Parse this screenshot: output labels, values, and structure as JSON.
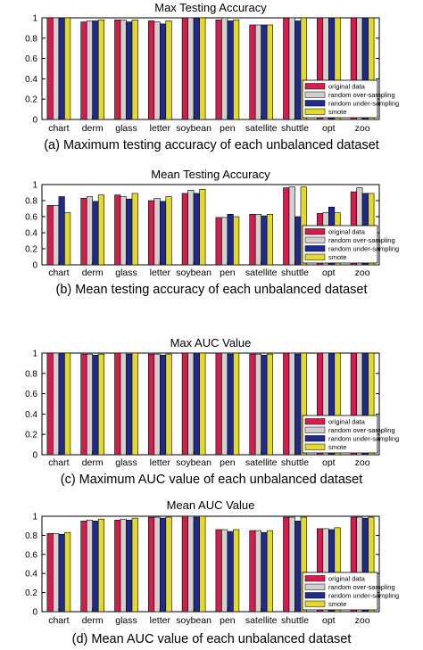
{
  "colors": {
    "original data": "#d21e4b",
    "random over-sampling": "#d0d0d0",
    "random under-sampling": "#1f2a8c",
    "smote": "#e3d92a"
  },
  "chart_data": [
    {
      "type": "bar",
      "title": "Max Testing Accuracy",
      "caption": "(a) Maximum testing accuracy of each unbalanced dataset",
      "categories": [
        "chart",
        "derm",
        "glass",
        "letter",
        "soybean",
        "pen",
        "satellite",
        "shuttle",
        "opt",
        "zoo"
      ],
      "ylim": [
        0,
        1
      ],
      "yticks": [
        "0",
        "0.2",
        "0.4",
        "0.6",
        "0.8",
        "1"
      ],
      "legend_position": "bottom-right",
      "series": [
        {
          "name": "original data",
          "values": [
            1.0,
            0.96,
            0.98,
            0.97,
            1.0,
            0.98,
            0.93,
            1.0,
            1.0,
            1.0
          ]
        },
        {
          "name": "random over-sampling",
          "values": [
            1.0,
            0.97,
            0.98,
            0.96,
            1.0,
            1.0,
            0.93,
            1.0,
            1.0,
            1.0
          ]
        },
        {
          "name": "random under-sampling",
          "values": [
            1.0,
            0.97,
            0.96,
            0.94,
            1.0,
            0.97,
            0.93,
            0.97,
            1.0,
            1.0
          ]
        },
        {
          "name": "smote",
          "values": [
            1.0,
            0.98,
            0.98,
            0.97,
            1.0,
            0.98,
            0.93,
            1.0,
            1.0,
            1.0
          ]
        }
      ]
    },
    {
      "type": "bar",
      "title": "Mean Testing Accuracy",
      "caption": "(b) Mean testing accuracy of each unbalanced dataset",
      "categories": [
        "chart",
        "derm",
        "glass",
        "letter",
        "soybean",
        "pen",
        "satellite",
        "shuttle",
        "opt",
        "zoo"
      ],
      "ylim": [
        0,
        1
      ],
      "yticks": [
        "0",
        "0.2",
        "0.4",
        "0.6",
        "0.8",
        "1"
      ],
      "legend_position": "bottom-right",
      "series": [
        {
          "name": "original data",
          "values": [
            0.74,
            0.83,
            0.87,
            0.8,
            0.89,
            0.59,
            0.63,
            0.96,
            0.64,
            0.91
          ]
        },
        {
          "name": "random over-sampling",
          "values": [
            0.74,
            0.85,
            0.85,
            0.83,
            0.93,
            0.59,
            0.63,
            0.97,
            0.65,
            0.96
          ]
        },
        {
          "name": "random under-sampling",
          "values": [
            0.85,
            0.79,
            0.82,
            0.79,
            0.89,
            0.63,
            0.61,
            0.6,
            0.72,
            0.89
          ]
        },
        {
          "name": "smote",
          "values": [
            0.65,
            0.87,
            0.89,
            0.85,
            0.94,
            0.6,
            0.63,
            0.97,
            0.65,
            0.89
          ]
        }
      ]
    },
    {
      "type": "bar",
      "title": "Max AUC Value",
      "caption": "(c) Maximum AUC value of each unbalanced dataset",
      "categories": [
        "chart",
        "derm",
        "glass",
        "letter",
        "soybean",
        "pen",
        "satellite",
        "shuttle",
        "opt",
        "zoo"
      ],
      "ylim": [
        0,
        1
      ],
      "yticks": [
        "0",
        "0.2",
        "0.4",
        "0.6",
        "0.8",
        "1"
      ],
      "legend_position": "bottom-right",
      "series": [
        {
          "name": "original data",
          "values": [
            1.0,
            0.99,
            1.0,
            0.99,
            1.0,
            1.0,
            0.99,
            1.0,
            1.0,
            1.0
          ]
        },
        {
          "name": "random over-sampling",
          "values": [
            1.0,
            0.99,
            1.0,
            0.99,
            1.0,
            1.0,
            0.99,
            1.0,
            1.0,
            1.0
          ]
        },
        {
          "name": "random under-sampling",
          "values": [
            1.0,
            0.98,
            0.99,
            0.98,
            1.0,
            0.99,
            0.98,
            0.99,
            1.0,
            1.0
          ]
        },
        {
          "name": "smote",
          "values": [
            1.0,
            0.99,
            1.0,
            0.99,
            1.0,
            1.0,
            0.99,
            1.0,
            1.0,
            1.0
          ]
        }
      ]
    },
    {
      "type": "bar",
      "title": "Mean AUC Value",
      "caption": "(d) Mean AUC value of each unbalanced dataset",
      "categories": [
        "chart",
        "derm",
        "glass",
        "letter",
        "soybean",
        "pen",
        "satellite",
        "shuttle",
        "opt",
        "zoo"
      ],
      "ylim": [
        0,
        1
      ],
      "yticks": [
        "0",
        "0.2",
        "0.4",
        "0.6",
        "0.8",
        "1"
      ],
      "legend_position": "bottom-right",
      "series": [
        {
          "name": "original data",
          "values": [
            0.82,
            0.95,
            0.96,
            0.99,
            1.0,
            0.86,
            0.85,
            0.99,
            0.87,
            0.99
          ]
        },
        {
          "name": "random over-sampling",
          "values": [
            0.82,
            0.96,
            0.97,
            0.99,
            1.0,
            0.86,
            0.85,
            0.99,
            0.87,
            0.99
          ]
        },
        {
          "name": "random under-sampling",
          "values": [
            0.81,
            0.95,
            0.96,
            0.98,
            0.99,
            0.84,
            0.83,
            0.95,
            0.86,
            0.98
          ]
        },
        {
          "name": "smote",
          "values": [
            0.83,
            0.97,
            0.98,
            0.99,
            1.0,
            0.86,
            0.85,
            0.99,
            0.88,
            0.99
          ]
        }
      ]
    }
  ]
}
